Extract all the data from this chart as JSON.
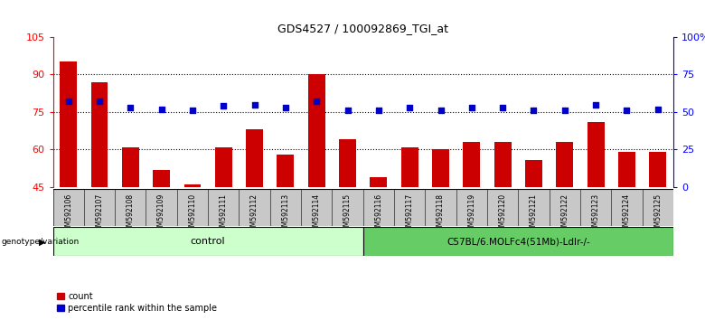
{
  "title": "GDS4527 / 100092869_TGI_at",
  "samples": [
    "GSM592106",
    "GSM592107",
    "GSM592108",
    "GSM592109",
    "GSM592110",
    "GSM592111",
    "GSM592112",
    "GSM592113",
    "GSM592114",
    "GSM592115",
    "GSM592116",
    "GSM592117",
    "GSM592118",
    "GSM592119",
    "GSM592120",
    "GSM592121",
    "GSM592122",
    "GSM592123",
    "GSM592124",
    "GSM592125"
  ],
  "bar_values": [
    95,
    87,
    61,
    52,
    46,
    61,
    68,
    58,
    90,
    64,
    49,
    61,
    60,
    63,
    63,
    56,
    63,
    71,
    59,
    59
  ],
  "percentile_values": [
    57,
    57,
    53,
    52,
    51,
    54,
    55,
    53,
    57,
    51,
    51,
    53,
    51,
    53,
    53,
    51,
    51,
    55,
    51,
    52
  ],
  "bar_color": "#cc0000",
  "percentile_color": "#0000cc",
  "ylim_left": [
    45,
    105
  ],
  "ylim_right": [
    0,
    100
  ],
  "yticks_left": [
    45,
    60,
    75,
    90,
    105
  ],
  "yticks_right": [
    0,
    25,
    50,
    75,
    100
  ],
  "ytick_labels_right": [
    "0",
    "25",
    "50",
    "75",
    "100%"
  ],
  "grid_values": [
    60,
    75,
    90
  ],
  "n_control": 10,
  "n_treatment": 10,
  "control_label": "control",
  "treatment_label": "C57BL/6.MOLFc4(51Mb)-Ldlr-/-",
  "group_label": "genotype/variation",
  "legend_count": "count",
  "legend_percentile": "percentile rank within the sample",
  "control_color": "#ccffcc",
  "treatment_color": "#66cc66",
  "tick_bg_color": "#c8c8c8",
  "bg_color": "#ffffff"
}
